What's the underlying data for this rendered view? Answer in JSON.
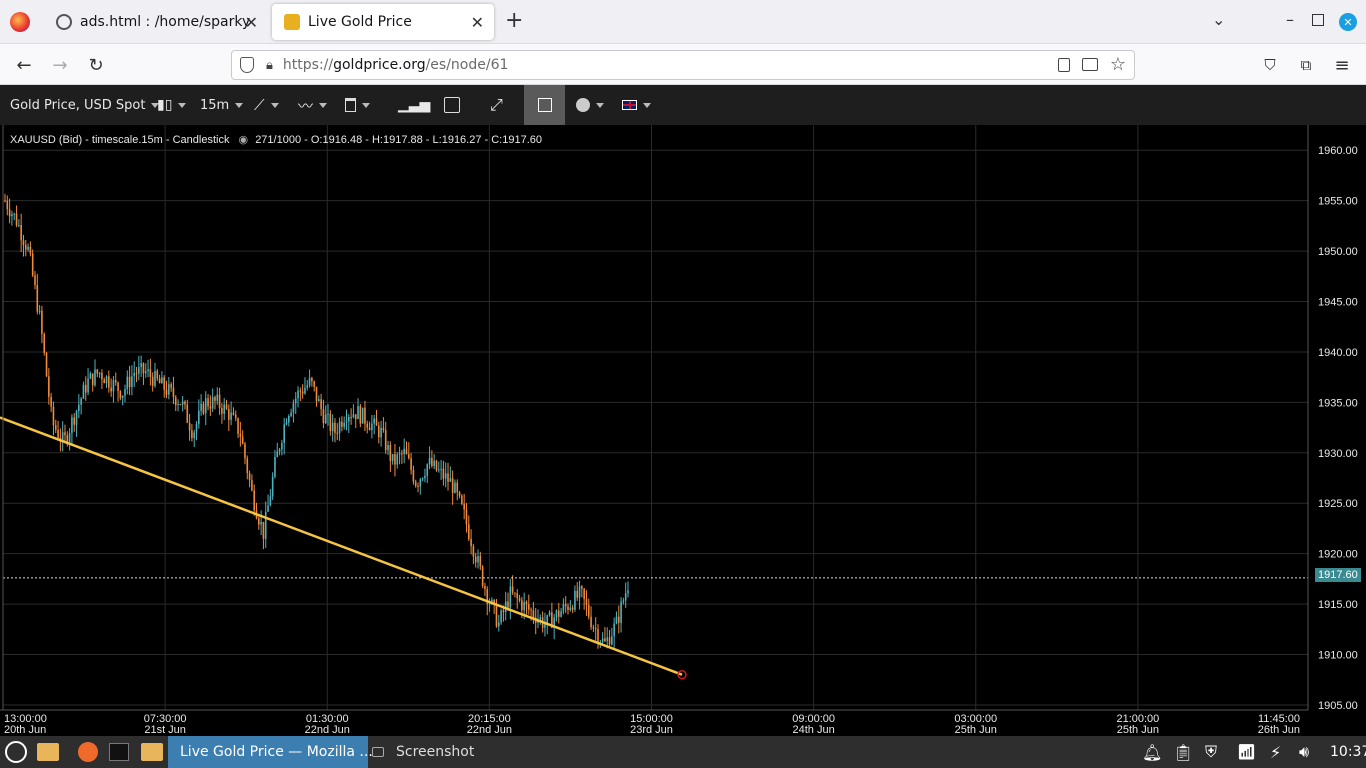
{
  "browser": {
    "tabs": [
      {
        "label": "ads.html : /home/sparkypen",
        "active": false
      },
      {
        "label": "Live Gold Price",
        "active": true
      }
    ],
    "new_tab": "+",
    "url": "https://goldprice.org/es/node/61",
    "url_host": "goldprice.org",
    "url_prefix": "https://",
    "url_path": "/es/node/61"
  },
  "toolbar": {
    "instrument": "Gold Price, USD Spot",
    "timeframe": "15m"
  },
  "chart_data": {
    "type": "candlestick",
    "legend": "XAUUSD (Bid) - timescale.15m - Candlestick",
    "stats": "271/1000 - O:1916.48 - H:1917.88 - L:1916.27 - C:1917.60",
    "last_price": "1917.60",
    "last_value": 1917.6,
    "ylim": [
      1905,
      1962
    ],
    "yticks": [
      "1960.00",
      "1955.00",
      "1950.00",
      "1945.00",
      "1940.00",
      "1935.00",
      "1930.00",
      "1925.00",
      "1920.00",
      "1915.00",
      "1910.00",
      "1905.00"
    ],
    "yvalues": [
      1960,
      1955,
      1950,
      1945,
      1940,
      1935,
      1930,
      1925,
      1920,
      1915,
      1910,
      1905
    ],
    "xticks": [
      {
        "time": "13:00:00",
        "date": "20th Jun"
      },
      {
        "time": "07:30:00",
        "date": "21st Jun"
      },
      {
        "time": "01:30:00",
        "date": "22nd Jun"
      },
      {
        "time": "20:15:00",
        "date": "22nd Jun"
      },
      {
        "time": "15:00:00",
        "date": "23rd Jun"
      },
      {
        "time": "09:00:00",
        "date": "24th Jun"
      },
      {
        "time": "03:00:00",
        "date": "25th Jun"
      },
      {
        "time": "21:00:00",
        "date": "25th Jun"
      },
      {
        "time": "11:45:00",
        "date": "26th Jun"
      }
    ],
    "trend_series": [
      1955,
      1953,
      1950,
      1943,
      1933,
      1931,
      1934,
      1937,
      1938,
      1937,
      1936,
      1938,
      1938,
      1937,
      1936,
      1935,
      1932,
      1935,
      1935,
      1934,
      1932,
      1926,
      1922,
      1929,
      1934,
      1936,
      1937,
      1934,
      1932,
      1934,
      1934,
      1933,
      1932,
      1929,
      1930,
      1927,
      1929,
      1928,
      1927,
      1924,
      1920,
      1916,
      1913,
      1916,
      1915,
      1914,
      1913,
      1914,
      1915,
      1916,
      1913,
      1911,
      1913,
      1917
    ],
    "trendline": {
      "from": 1933.5,
      "to": 1908
    }
  },
  "taskbar": {
    "window_label": "Live Gold Price — Mozilla ...",
    "screenshot_label": "Screenshot",
    "clock": "10:37"
  },
  "colors": {
    "up": "#4fb3bf",
    "down": "#f08a3c",
    "trendline": "#f5c542",
    "grid": "#2a2a2a"
  }
}
